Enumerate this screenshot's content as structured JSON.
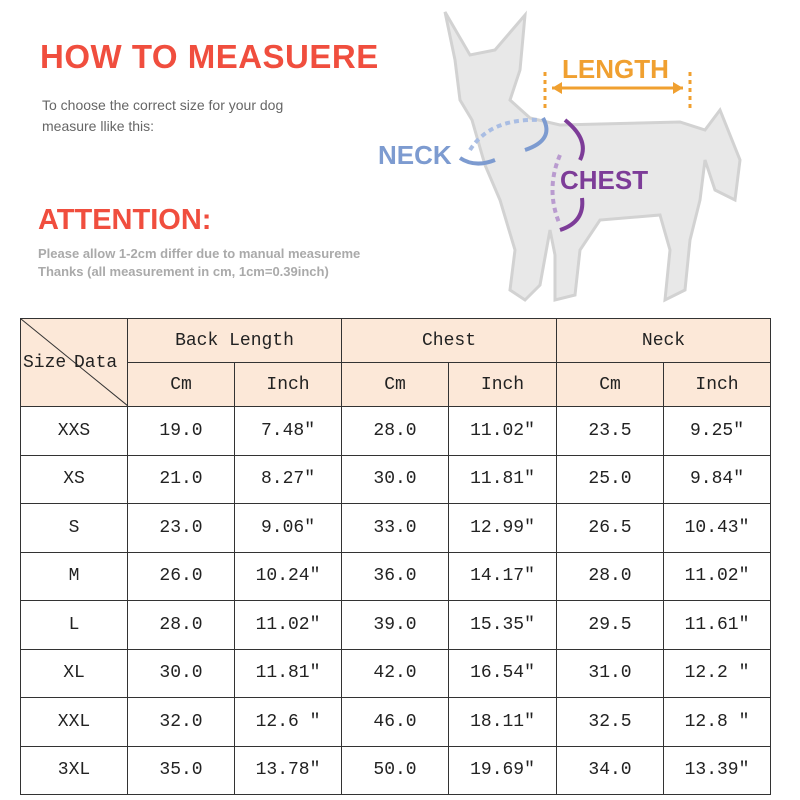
{
  "header": {
    "title": "HOW TO MEASUERE",
    "subtitle": [
      "To choose the correct size for your dog",
      "measure llike this:"
    ]
  },
  "attention": {
    "title": "ATTENTION:",
    "lines": [
      "Please allow 1-2cm differ due to manual measureme",
      "Thanks (all measurement in cm, 1cm=0.39inch)"
    ]
  },
  "diagram": {
    "length": "LENGTH",
    "neck": "NECK",
    "chest": "CHEST"
  },
  "table": {
    "corner": [
      "Size",
      "Data"
    ],
    "groups": [
      "Back Length",
      "Chest",
      "Neck"
    ],
    "units": [
      "Cm",
      "Inch",
      "Cm",
      "Inch",
      "Cm",
      "Inch"
    ],
    "rows": [
      [
        "XXS",
        "19.0",
        "7.48″",
        "28.0",
        "11.02″",
        "23.5",
        "9.25″"
      ],
      [
        "XS",
        "21.0",
        "8.27″",
        "30.0",
        "11.81″",
        "25.0",
        "9.84″"
      ],
      [
        "S",
        "23.0",
        "9.06″",
        "33.0",
        "12.99″",
        "26.5",
        "10.43″"
      ],
      [
        "M",
        "26.0",
        "10.24″",
        "36.0",
        "14.17″",
        "28.0",
        "11.02″"
      ],
      [
        "L",
        "28.0",
        "11.02″",
        "39.0",
        "15.35″",
        "29.5",
        "11.61″"
      ],
      [
        "XL",
        "30.0",
        "11.81″",
        "42.0",
        "16.54″",
        "31.0",
        "12.2 ″"
      ],
      [
        "XXL",
        "32.0",
        "12.6 ″",
        "46.0",
        "18.11″",
        "32.5",
        "12.8 ″"
      ],
      [
        "3XL",
        "35.0",
        "13.78″",
        "50.0",
        "19.69″",
        "34.0",
        "13.39″"
      ]
    ]
  }
}
